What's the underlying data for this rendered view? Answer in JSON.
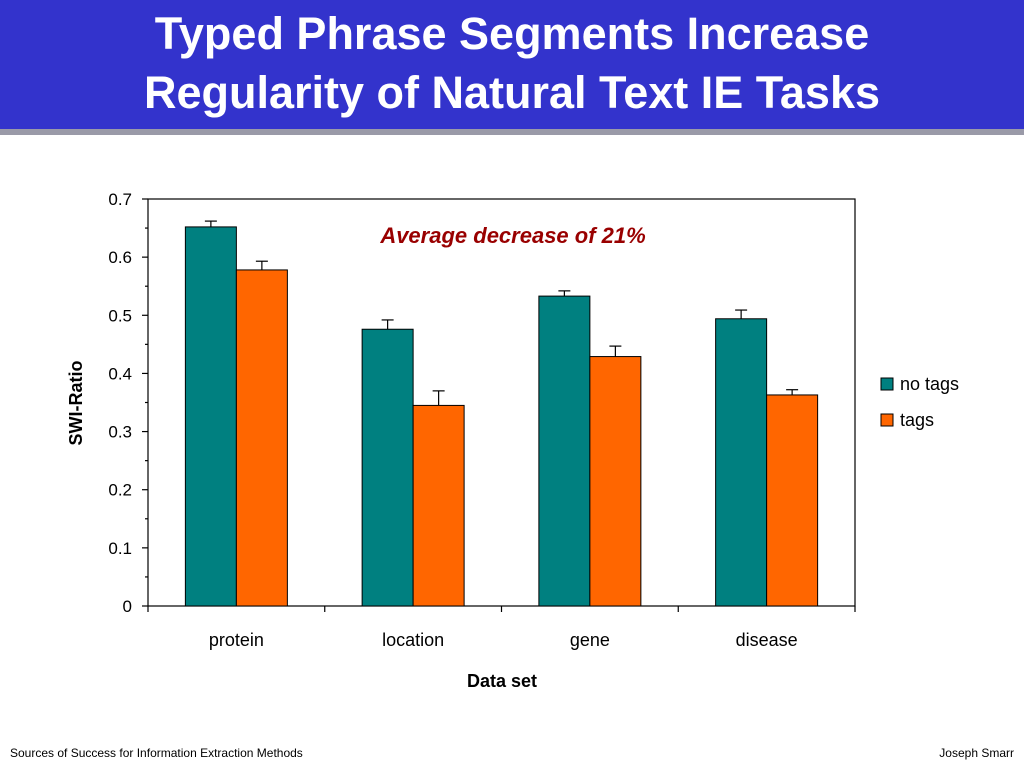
{
  "slide": {
    "title_line1": "Typed Phrase Segments Increase",
    "title_line2": "Regularity of Natural Text IE Tasks",
    "footer_left": "Sources of Success for Information Extraction Methods",
    "footer_right": "Joseph Smarr"
  },
  "colors": {
    "title_bar": "#3333cc",
    "no_tags": "#008080",
    "tags": "#ff6600",
    "annotation": "#990000"
  },
  "chart_data": {
    "type": "bar",
    "title": "",
    "xlabel": "Data set",
    "ylabel": "SWI-Ratio",
    "ylim": [
      0,
      0.7
    ],
    "yticks": [
      "0",
      "0.1",
      "0.2",
      "0.3",
      "0.4",
      "0.5",
      "0.6",
      "0.7"
    ],
    "grid": false,
    "legend_position": "right",
    "annotation": "Average decrease of 21%",
    "categories": [
      "protein",
      "location",
      "gene",
      "disease"
    ],
    "series": [
      {
        "name": "no tags",
        "values": [
          0.652,
          0.476,
          0.533,
          0.494
        ],
        "errors": [
          0.01,
          0.016,
          0.009,
          0.015
        ]
      },
      {
        "name": "tags",
        "values": [
          0.578,
          0.345,
          0.429,
          0.363
        ],
        "errors": [
          0.015,
          0.025,
          0.018,
          0.009
        ]
      }
    ]
  }
}
